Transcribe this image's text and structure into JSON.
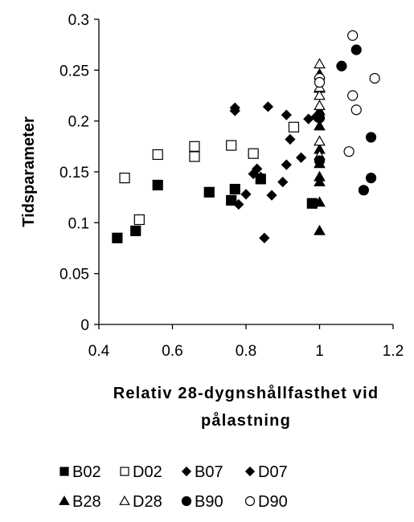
{
  "chart_data": {
    "type": "scatter",
    "title": "",
    "xlabel_lines": [
      "Relativ 28-dygnshållfasthet vid",
      "pålastning"
    ],
    "ylabel": "Tidsparameter",
    "xlim": [
      0.4,
      1.2
    ],
    "ylim": [
      0,
      0.3
    ],
    "x_ticks": [
      0.4,
      0.6,
      0.8,
      1.0,
      1.2
    ],
    "x_tick_labels": [
      "0.4",
      "0.6",
      "0.8",
      "1",
      "1.2"
    ],
    "y_ticks": [
      0,
      0.05,
      0.1,
      0.15,
      0.2,
      0.25,
      0.3
    ],
    "y_tick_labels": [
      "0",
      "0.05",
      "0.1",
      "0.15",
      "0.2",
      "0.25",
      "0.3"
    ],
    "grid": false,
    "legend_position": "bottom",
    "series": [
      {
        "name": "B02",
        "marker": "square",
        "filled": true,
        "color": "#000000",
        "points": [
          [
            0.45,
            0.085
          ],
          [
            0.5,
            0.092
          ],
          [
            0.56,
            0.137
          ],
          [
            0.7,
            0.13
          ],
          [
            0.76,
            0.122
          ],
          [
            0.77,
            0.133
          ],
          [
            0.84,
            0.143
          ],
          [
            0.98,
            0.119
          ]
        ]
      },
      {
        "name": "D02",
        "marker": "square",
        "filled": false,
        "color": "#000000",
        "points": [
          [
            0.47,
            0.144
          ],
          [
            0.51,
            0.103
          ],
          [
            0.56,
            0.167
          ],
          [
            0.66,
            0.175
          ],
          [
            0.66,
            0.165
          ],
          [
            0.76,
            0.176
          ],
          [
            0.82,
            0.168
          ],
          [
            0.93,
            0.194
          ]
        ]
      },
      {
        "name": "B07",
        "marker": "diamond",
        "filled": true,
        "color": "#000000",
        "points": [
          [
            0.77,
            0.213
          ],
          [
            0.77,
            0.21
          ],
          [
            0.78,
            0.118
          ],
          [
            0.8,
            0.128
          ],
          [
            0.82,
            0.148
          ],
          [
            0.83,
            0.153
          ],
          [
            0.84,
            0.145
          ],
          [
            0.85,
            0.085
          ],
          [
            0.86,
            0.214
          ],
          [
            0.87,
            0.127
          ]
        ]
      },
      {
        "name": "D07",
        "marker": "diamond",
        "filled": true,
        "color": "#000000",
        "points": [
          [
            0.9,
            0.14
          ],
          [
            0.91,
            0.157
          ],
          [
            0.91,
            0.206
          ],
          [
            0.92,
            0.182
          ],
          [
            0.95,
            0.164
          ],
          [
            0.97,
            0.202
          ],
          [
            0.99,
            0.204
          ]
        ]
      },
      {
        "name": "B28",
        "marker": "triangle",
        "filled": true,
        "color": "#000000",
        "points": [
          [
            1.0,
            0.092
          ],
          [
            1.0,
            0.12
          ],
          [
            1.0,
            0.14
          ],
          [
            1.0,
            0.145
          ],
          [
            1.0,
            0.158
          ],
          [
            1.0,
            0.172
          ],
          [
            1.0,
            0.195
          ],
          [
            1.0,
            0.21
          ],
          [
            1.0,
            0.232
          ],
          [
            1.0,
            0.246
          ]
        ]
      },
      {
        "name": "D28",
        "marker": "triangle",
        "filled": false,
        "color": "#000000",
        "points": [
          [
            1.0,
            0.166
          ],
          [
            1.0,
            0.18
          ],
          [
            1.0,
            0.215
          ],
          [
            1.0,
            0.225
          ],
          [
            1.0,
            0.233
          ],
          [
            1.0,
            0.256
          ]
        ]
      },
      {
        "name": "B90",
        "marker": "circle",
        "filled": true,
        "color": "#000000",
        "points": [
          [
            1.0,
            0.161
          ],
          [
            1.0,
            0.203
          ],
          [
            1.06,
            0.254
          ],
          [
            1.1,
            0.27
          ],
          [
            1.12,
            0.132
          ],
          [
            1.14,
            0.184
          ],
          [
            1.14,
            0.144
          ]
        ]
      },
      {
        "name": "D90",
        "marker": "circle",
        "filled": false,
        "color": "#000000",
        "points": [
          [
            1.0,
            0.242
          ],
          [
            1.0,
            0.238
          ],
          [
            1.08,
            0.17
          ],
          [
            1.09,
            0.284
          ],
          [
            1.09,
            0.225
          ],
          [
            1.1,
            0.211
          ],
          [
            1.15,
            0.242
          ]
        ]
      }
    ]
  }
}
